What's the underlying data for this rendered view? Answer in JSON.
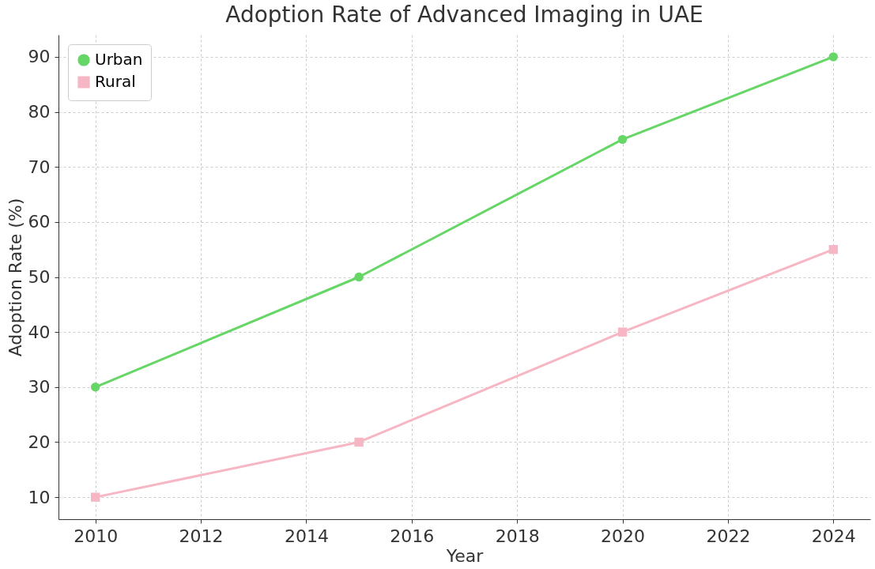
{
  "chart_data": {
    "type": "line",
    "title": "Adoption Rate of Advanced Imaging in UAE",
    "xlabel": "Year",
    "ylabel": "Adoption Rate (%)",
    "x": [
      2010,
      2015,
      2020,
      2024
    ],
    "series": [
      {
        "name": "Urban",
        "color": "#66d666",
        "marker": "circle",
        "values": [
          30,
          50,
          75,
          90
        ]
      },
      {
        "name": "Rural",
        "color": "#f7b6c4",
        "marker": "square",
        "values": [
          10,
          20,
          40,
          55
        ]
      }
    ],
    "xlim": [
      2009.3,
      2024.7
    ],
    "xticks": [
      2010,
      2012,
      2014,
      2016,
      2018,
      2020,
      2022,
      2024
    ],
    "ylim": [
      6,
      94
    ],
    "yticks": [
      10,
      20,
      30,
      40,
      50,
      60,
      70,
      80,
      90
    ],
    "grid": true,
    "legend": "top left",
    "line_style": "solid"
  }
}
